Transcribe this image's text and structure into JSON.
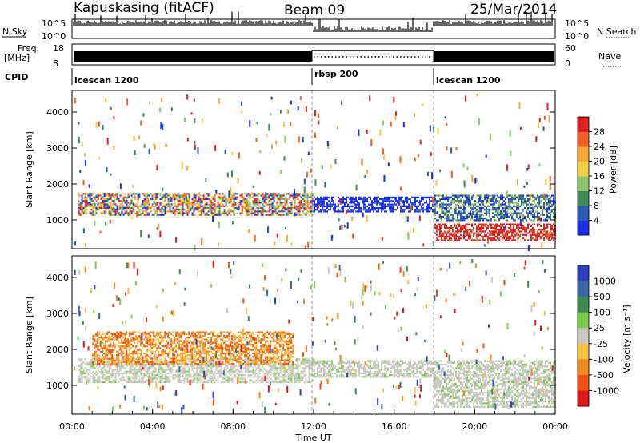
{
  "header": {
    "station": "Kapuskasing (fitACF)",
    "beam": "Beam 09",
    "date": "25/Mar/2014"
  },
  "top_panels": {
    "nsky_label": "N.Sky",
    "nsky_ticks": [
      "10^5",
      "10^0"
    ],
    "nsearch_label": "N.Search",
    "freq_label_1": "Freq.",
    "freq_label_2": "[MHz]",
    "freq_ticks": [
      "18",
      "8"
    ],
    "nave_label": "Nave",
    "nave_ticks": [
      "60",
      "0"
    ],
    "right_nsky_ticks": [
      "10^5",
      "10^0"
    ],
    "cpid_label": "CPID",
    "cpid_segments": [
      {
        "label": "icescan 1200",
        "start_h": 0,
        "end_h": 12
      },
      {
        "label": "rbsp 200",
        "start_h": 12,
        "end_h": 18
      },
      {
        "label": "icescan 1200",
        "start_h": 18,
        "end_h": 24
      }
    ]
  },
  "chart_data": [
    {
      "type": "heatmap",
      "title": "",
      "xlabel": "Time UT",
      "ylabel": "Slant Range [km]",
      "xlim_hours": [
        0,
        24
      ],
      "ylim": [
        200,
        4600
      ],
      "yticks": [
        1000,
        2000,
        3000,
        4000
      ],
      "colorbar": {
        "label": "Power [dB]",
        "ticks": [
          "4",
          "8",
          "12",
          "16",
          "20",
          "24",
          "28"
        ],
        "colors": [
          "#1a2ee8",
          "#2a58b4",
          "#3e8a5a",
          "#8cc66a",
          "#f0d040",
          "#f7a830",
          "#f06020",
          "#e02020"
        ]
      },
      "regions": [
        {
          "t0": 0.3,
          "t1": 12,
          "r0": 1150,
          "r1": 1750,
          "level": "mixed-high"
        },
        {
          "t0": 12,
          "t1": 18,
          "r0": 1250,
          "r1": 1650,
          "level": "low"
        },
        {
          "t0": 18,
          "t1": 24,
          "r0": 450,
          "r1": 900,
          "level": "high"
        },
        {
          "t0": 18,
          "t1": 24,
          "r0": 1000,
          "r1": 1700,
          "level": "low-mid"
        }
      ]
    },
    {
      "type": "heatmap",
      "title": "",
      "xlabel": "Time UT",
      "ylabel": "Slant Range [km]",
      "xlim_hours": [
        0,
        24
      ],
      "ylim": [
        200,
        4600
      ],
      "yticks": [
        1000,
        2000,
        3000,
        4000
      ],
      "xticks": [
        "00:00",
        "04:00",
        "08:00",
        "12:00",
        "16:00",
        "20:00",
        "00:00"
      ],
      "colorbar": {
        "label": "Velocity [m s⁻¹]",
        "ticks": [
          "1000",
          "500",
          "100",
          "25",
          "-25",
          "-100",
          "-500",
          "-1000"
        ],
        "colors": [
          "#2a3ec0",
          "#3a66a8",
          "#3e8a4e",
          "#7ccc4a",
          "#c8c8c0",
          "#f8c040",
          "#f08a20",
          "#f05010",
          "#e01818"
        ]
      },
      "regions": [
        {
          "t0": 0.3,
          "t1": 12,
          "r0": 1100,
          "r1": 1750,
          "level": "ground-grey"
        },
        {
          "t0": 1,
          "t1": 11,
          "r0": 1600,
          "r1": 2500,
          "level": "negative-orange"
        },
        {
          "t0": 12,
          "t1": 18,
          "r0": 1250,
          "r1": 1700,
          "level": "ground-grey"
        },
        {
          "t0": 18,
          "t1": 24,
          "r0": 400,
          "r1": 1700,
          "level": "ground-grey"
        }
      ]
    }
  ]
}
